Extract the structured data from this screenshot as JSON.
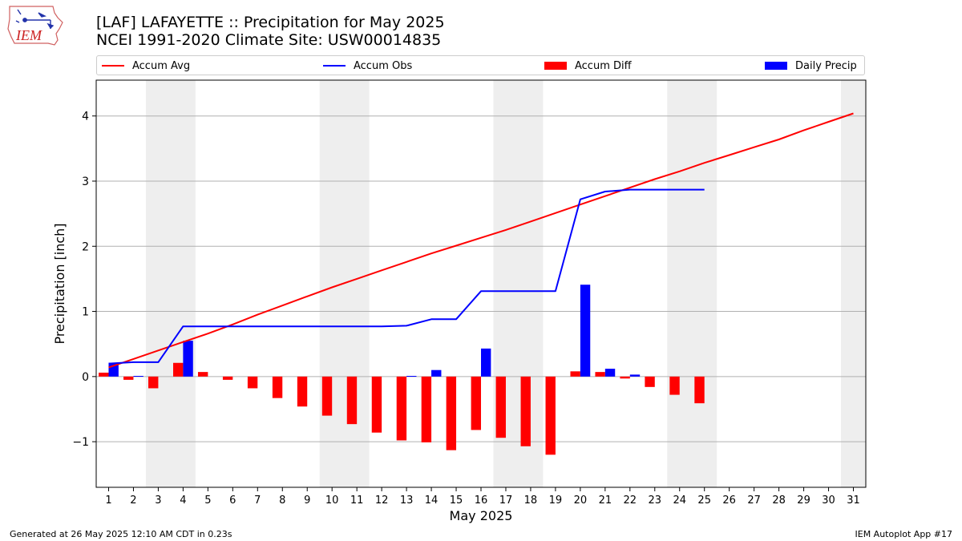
{
  "title_line1": "[LAF] LAFAYETTE :: Precipitation for May 2025",
  "title_line2": "NCEI 1991-2020 Climate Site: USW00014835",
  "logo_text": "IEM",
  "legend": {
    "accum_avg": "Accum Avg",
    "accum_obs": "Accum Obs",
    "accum_diff": "Accum Diff",
    "daily_precip": "Daily Precip"
  },
  "footer_left": "Generated at 26 May 2025 12:10 AM CDT in 0.23s",
  "footer_right": "IEM Autoplot App #17",
  "colors": {
    "accum_avg": "#ff0000",
    "accum_obs": "#0000ff",
    "accum_diff": "#ff0000",
    "daily_precip": "#0000ff",
    "weekend_shade": "#eeeeee",
    "grid": "#b0b0b0"
  },
  "chart_data": {
    "type": "bar",
    "xlabel": "May 2025",
    "ylabel": "Precipitation [inch]",
    "ylim": [
      -1.7,
      4.55
    ],
    "yticks": [
      -1,
      0,
      1,
      2,
      3,
      4
    ],
    "ytick_labels": [
      "−1",
      "0",
      "1",
      "2",
      "3",
      "4"
    ],
    "days": [
      1,
      2,
      3,
      4,
      5,
      6,
      7,
      8,
      9,
      10,
      11,
      12,
      13,
      14,
      15,
      16,
      17,
      18,
      19,
      20,
      21,
      22,
      23,
      24,
      25,
      26,
      27,
      28,
      29,
      30,
      31
    ],
    "weekend_spans": [
      [
        3,
        4
      ],
      [
        10,
        11
      ],
      [
        17,
        18
      ],
      [
        24,
        25
      ],
      [
        31,
        31
      ]
    ],
    "grid": "horizontal",
    "legend_position": "top",
    "series": [
      {
        "name": "Accum Avg",
        "type": "line",
        "values": [
          0.14,
          0.27,
          0.4,
          0.53,
          0.66,
          0.8,
          0.95,
          1.09,
          1.23,
          1.37,
          1.5,
          1.63,
          1.76,
          1.89,
          2.01,
          2.13,
          2.25,
          2.38,
          2.51,
          2.64,
          2.77,
          2.9,
          3.03,
          3.15,
          3.28,
          3.4,
          3.52,
          3.64,
          3.78,
          3.91,
          4.04
        ]
      },
      {
        "name": "Accum Obs",
        "type": "line",
        "values": [
          0.2,
          0.22,
          0.22,
          0.77,
          0.77,
          0.77,
          0.77,
          0.77,
          0.77,
          0.77,
          0.77,
          0.77,
          0.78,
          0.88,
          0.88,
          1.31,
          1.31,
          1.31,
          1.31,
          2.72,
          2.84,
          2.87,
          2.87,
          2.87,
          2.87
        ]
      },
      {
        "name": "Accum Diff",
        "type": "bar",
        "values": [
          0.06,
          -0.05,
          -0.18,
          0.21,
          0.07,
          -0.05,
          -0.18,
          -0.33,
          -0.46,
          -0.6,
          -0.73,
          -0.86,
          -0.98,
          -1.01,
          -1.13,
          -0.82,
          -0.94,
          -1.07,
          -1.2,
          0.08,
          0.07,
          -0.03,
          -0.16,
          -0.28,
          -0.41
        ]
      },
      {
        "name": "Daily Precip",
        "type": "bar",
        "values": [
          0.21,
          0.01,
          0.0,
          0.55,
          0.0,
          0.0,
          0.0,
          0.0,
          0.0,
          0.0,
          0.0,
          0.0,
          0.01,
          0.1,
          0.0,
          0.43,
          0.0,
          0.0,
          0.0,
          1.41,
          0.12,
          0.03,
          0.0,
          0.0,
          0.0
        ]
      }
    ]
  }
}
